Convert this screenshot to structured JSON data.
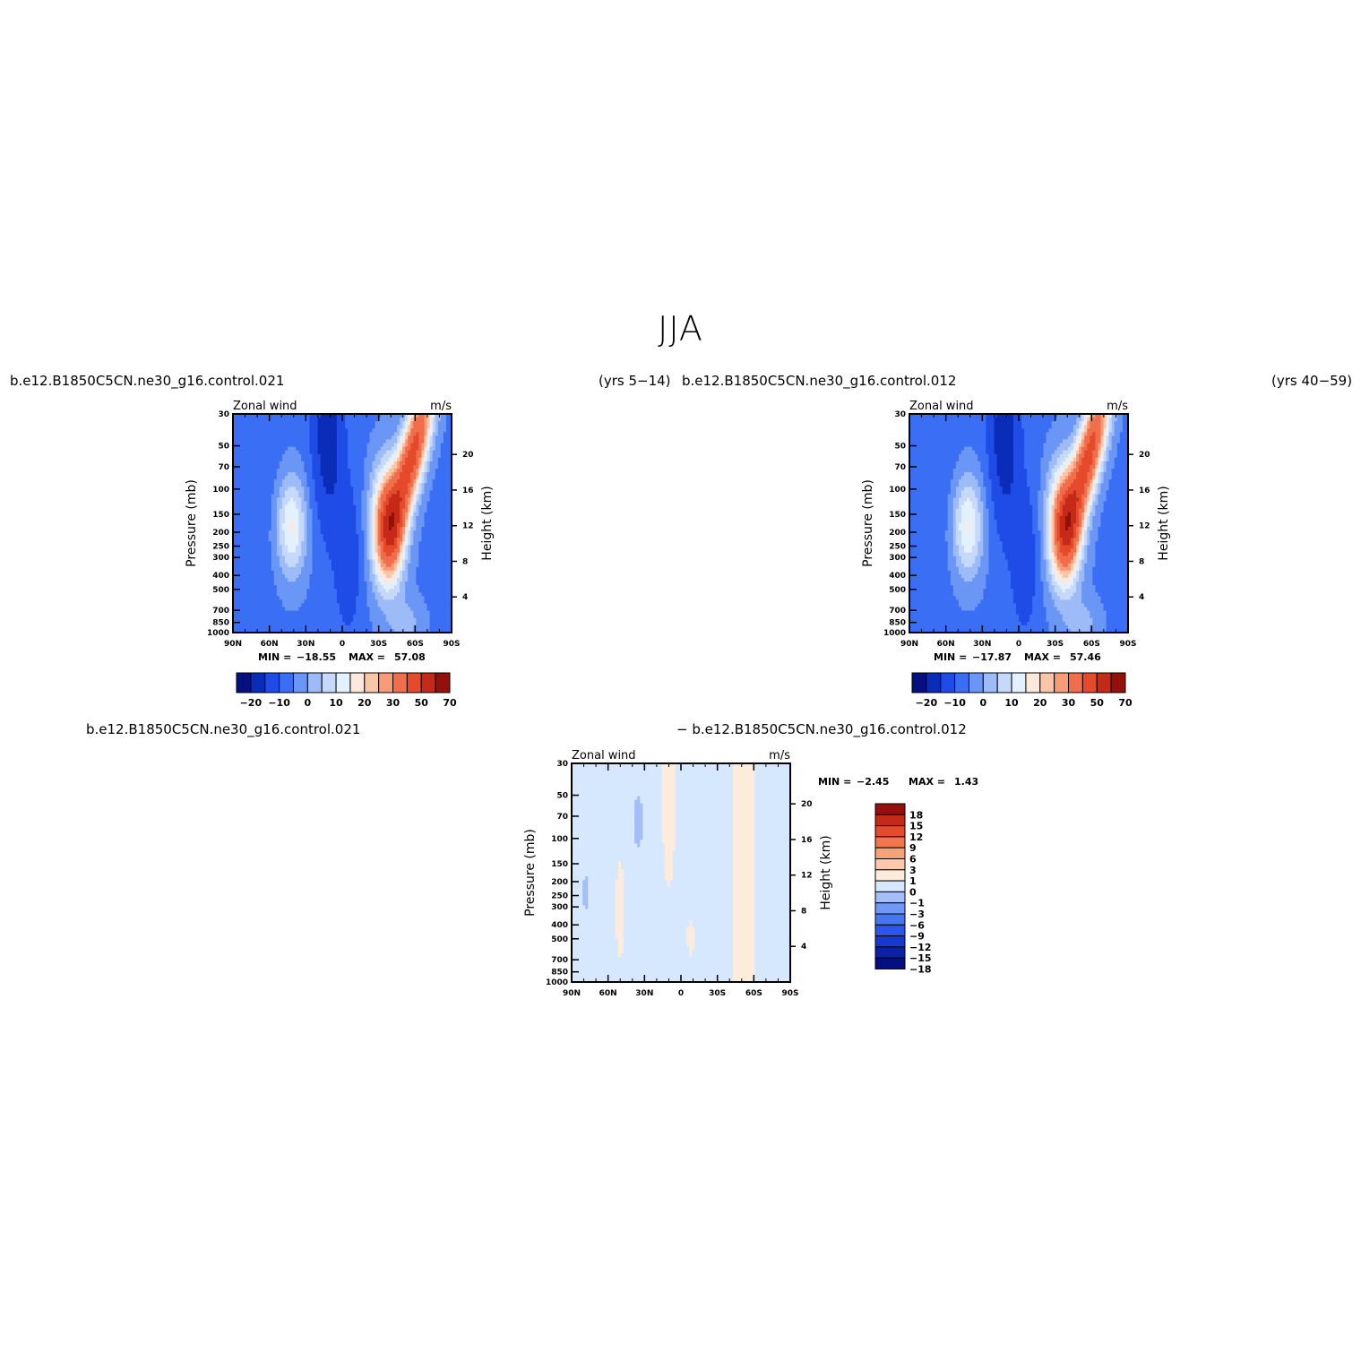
{
  "figure": {
    "title": "JJA",
    "panel_titles": {
      "left_case": "b.e12.B1850C5CN.ne30_g16.control.021",
      "left_years": "(yrs 5−14)",
      "right_case": "b.e12.B1850C5CN.ne30_g16.control.012",
      "right_years": "(yrs 40−59)",
      "diff_left": "b.e12.B1850C5CN.ne30_g16.control.021",
      "diff_right": "− b.e12.B1850C5CN.ne30_g16.control.012"
    }
  },
  "colors": {
    "abs_palette": [
      "#050f80",
      "#0a2db8",
      "#1f4ce6",
      "#3a6ef5",
      "#6a96f5",
      "#9dbbf7",
      "#c6d9fb",
      "#e3f0fe",
      "#fde9dc",
      "#fbc6a7",
      "#f89b78",
      "#f06e4b",
      "#e44a2b",
      "#c52a18",
      "#941109"
    ],
    "diff_palette": [
      "#050f80",
      "#0b22a8",
      "#1839cf",
      "#2c56ea",
      "#4876f3",
      "#7099f5",
      "#a3bef8",
      "#d6e8fe",
      "#fdebdb",
      "#fcc8ae",
      "#f9a07c",
      "#f3764e",
      "#e44a2b",
      "#c52a18",
      "#941109"
    ]
  },
  "chart_data": [
    {
      "type": "heatmap",
      "subtitle_left": "Zonal wind",
      "subtitle_right": "m/s",
      "ylabel": "Pressure (mb)",
      "y2label": "Height (km)",
      "x_ticks": [
        "90N",
        "60N",
        "30N",
        "0",
        "30S",
        "60S",
        "90S"
      ],
      "y_ticks": [
        "30",
        "50",
        "70",
        "100",
        "150",
        "200",
        "250",
        "300",
        "400",
        "500",
        "700",
        "850",
        "1000"
      ],
      "y2_ticks": [
        "20",
        "16",
        "12",
        "8",
        "4"
      ],
      "min_label": "MIN =",
      "min_value": "−18.55",
      "max_label": "MAX =",
      "max_value": "57.08",
      "colorbar_labels": [
        "−20",
        "−10",
        "0",
        "10",
        "20",
        "30",
        "50",
        "70"
      ],
      "levels": [
        -25,
        -20,
        -15,
        -10,
        -5,
        0,
        5,
        10,
        15,
        20,
        25,
        30,
        40,
        50,
        60,
        70
      ]
    },
    {
      "type": "heatmap",
      "subtitle_left": "Zonal wind",
      "subtitle_right": "m/s",
      "ylabel": "Pressure (mb)",
      "y2label": "Height (km)",
      "x_ticks": [
        "90N",
        "60N",
        "30N",
        "0",
        "30S",
        "60S",
        "90S"
      ],
      "y_ticks": [
        "30",
        "50",
        "70",
        "100",
        "150",
        "200",
        "250",
        "300",
        "400",
        "500",
        "700",
        "850",
        "1000"
      ],
      "y2_ticks": [
        "20",
        "16",
        "12",
        "8",
        "4"
      ],
      "min_label": "MIN =",
      "min_value": "−17.87",
      "max_label": "MAX =",
      "max_value": "57.46",
      "colorbar_labels": [
        "−20",
        "−10",
        "0",
        "10",
        "20",
        "30",
        "50",
        "70"
      ],
      "levels": [
        -25,
        -20,
        -15,
        -10,
        -5,
        0,
        5,
        10,
        15,
        20,
        25,
        30,
        40,
        50,
        60,
        70
      ]
    },
    {
      "type": "heatmap",
      "subtitle_left": "Zonal wind",
      "subtitle_right": "m/s",
      "ylabel": "Pressure (mb)",
      "y2label": "Height (km)",
      "x_ticks": [
        "90N",
        "60N",
        "30N",
        "0",
        "30S",
        "60S",
        "90S"
      ],
      "y_ticks": [
        "30",
        "50",
        "70",
        "100",
        "150",
        "200",
        "250",
        "300",
        "400",
        "500",
        "700",
        "850",
        "1000"
      ],
      "y2_ticks": [
        "20",
        "16",
        "12",
        "8",
        "4"
      ],
      "min_label": "MIN =",
      "min_value": "−2.45",
      "max_label": "MAX =",
      "max_value": "1.43",
      "colorbar_labels": [
        "18",
        "15",
        "12",
        "9",
        "6",
        "3",
        "1",
        "0",
        "−1",
        "−3",
        "−6",
        "−9",
        "−12",
        "−15",
        "−18"
      ]
    }
  ]
}
